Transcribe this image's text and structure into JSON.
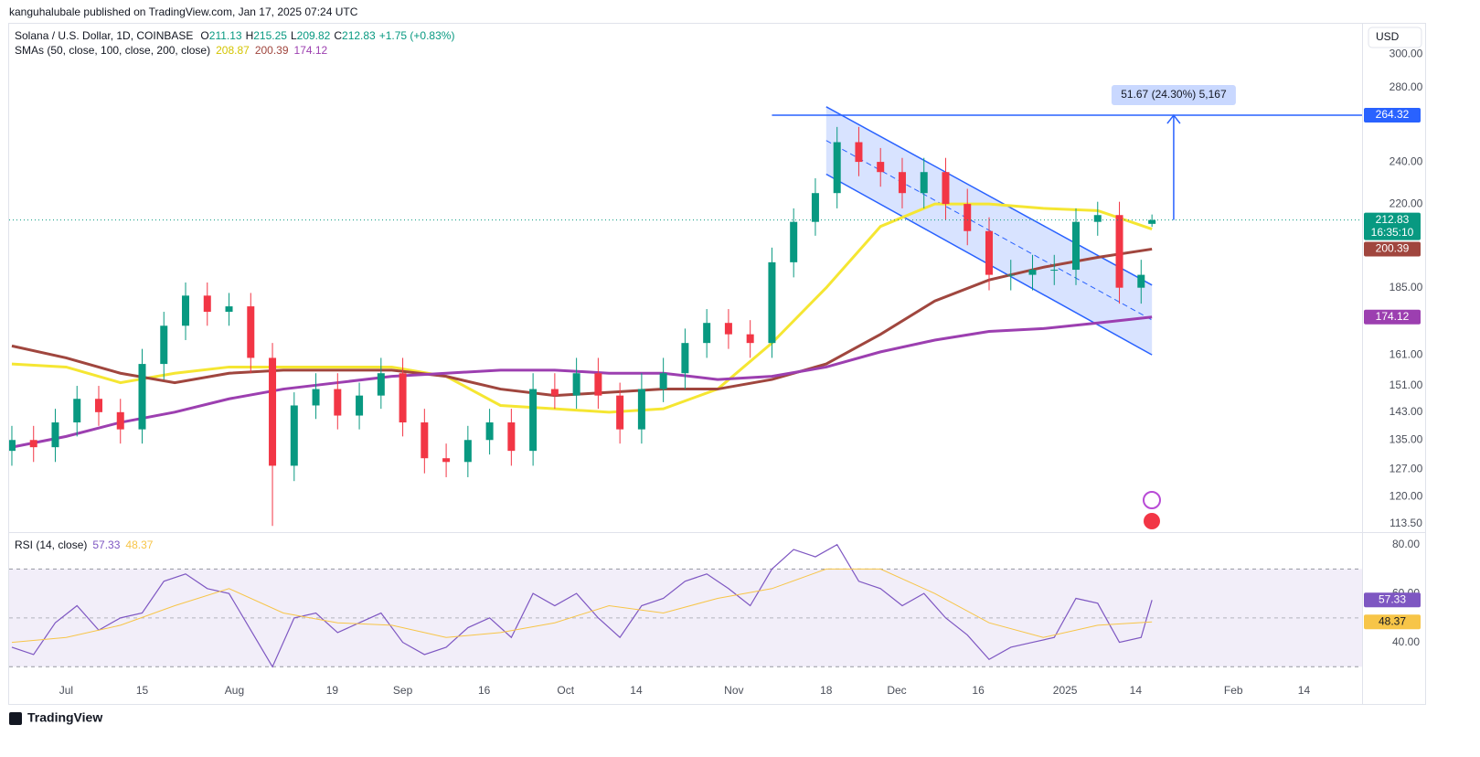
{
  "header": {
    "publisher": "kanguhalubale published on TradingView.com, Jan 17, 2025 07:24 UTC",
    "currency": "USD"
  },
  "chart_data": [
    {
      "type": "candlestick",
      "title": "Solana / U.S. Dollar, 1D, COINBASE",
      "ohlc_labels": [
        "O",
        "H",
        "L",
        "C"
      ],
      "change": "+1.75 (+0.83%)",
      "indicator": "SMAs (50, close, 100, close, 200, close)",
      "x": [
        -10,
        -6,
        -2,
        2,
        6,
        10,
        14,
        18,
        22,
        26,
        30,
        34,
        38,
        42,
        46,
        50,
        54,
        58,
        62,
        66,
        70,
        74,
        78,
        82,
        86,
        90,
        94,
        98,
        102,
        106,
        110,
        114,
        118,
        122,
        126,
        130,
        134,
        138,
        142,
        146,
        150,
        154,
        158,
        162,
        166,
        170,
        174,
        178,
        182,
        186,
        190,
        194,
        198,
        200
      ],
      "open": [
        132,
        135,
        133,
        140,
        147,
        143,
        138,
        158,
        171,
        182,
        176,
        178,
        160,
        128,
        145,
        150,
        142,
        148,
        155,
        140,
        130,
        129,
        135,
        140,
        132,
        150,
        148,
        155,
        148,
        138,
        150,
        155,
        165,
        172,
        168,
        165,
        195,
        212,
        225,
        250,
        240,
        235,
        225,
        235,
        220,
        208,
        190,
        190,
        192,
        192,
        212,
        215,
        185,
        211.13
      ],
      "high": [
        139,
        139,
        144,
        151,
        151,
        147,
        163,
        176,
        187,
        187,
        183,
        183,
        165,
        149,
        155,
        155,
        152,
        160,
        160,
        144,
        134,
        139,
        144,
        144,
        155,
        155,
        160,
        160,
        152,
        155,
        160,
        170,
        177,
        177,
        173,
        201,
        218,
        232,
        258,
        258,
        247,
        242,
        242,
        242,
        227,
        214,
        196,
        198,
        198,
        218,
        221,
        221,
        196,
        215.25
      ],
      "low": [
        128,
        129,
        129,
        136,
        139,
        134,
        134,
        153,
        166,
        171,
        171,
        155,
        113,
        124,
        141,
        138,
        138,
        144,
        136,
        126,
        125,
        125,
        131,
        128,
        128,
        144,
        144,
        144,
        134,
        134,
        146,
        150,
        160,
        163,
        160,
        160,
        189,
        206,
        218,
        233,
        228,
        218,
        218,
        213,
        202,
        184,
        184,
        184,
        186,
        186,
        206,
        179,
        179,
        209.82
      ],
      "close": [
        135,
        133,
        140,
        147,
        143,
        138,
        158,
        171,
        182,
        176,
        178,
        160,
        128,
        145,
        150,
        142,
        148,
        155,
        140,
        130,
        129,
        135,
        140,
        132,
        150,
        148,
        155,
        148,
        138,
        150,
        155,
        165,
        172,
        168,
        165,
        195,
        212,
        225,
        250,
        240,
        235,
        225,
        235,
        220,
        208,
        190,
        190,
        192,
        192,
        212,
        215,
        185,
        190,
        212.83
      ],
      "up_color": "#089981",
      "down_color": "#f23645",
      "log_scale": true,
      "ylim": [
        112,
        320
      ],
      "yticks": [
        {
          "value": 113.5,
          "label": "113.50"
        },
        {
          "value": 120,
          "label": "120.00"
        },
        {
          "value": 127,
          "label": "127.00"
        },
        {
          "value": 135,
          "label": "135.00"
        },
        {
          "value": 143,
          "label": "143.00"
        },
        {
          "value": 151,
          "label": "151.00"
        },
        {
          "value": 161,
          "label": "161.00"
        },
        {
          "value": 185,
          "label": "185.00"
        },
        {
          "value": 220,
          "label": "220.00"
        },
        {
          "value": 240,
          "label": "240.00"
        },
        {
          "value": 280,
          "label": "280.00"
        },
        {
          "value": 300,
          "label": "300.00"
        }
      ],
      "xlim": [
        -10.5,
        238.7
      ],
      "xticks": [
        {
          "value": 0,
          "label": "Jul"
        },
        {
          "value": 14,
          "label": "15"
        },
        {
          "value": 31,
          "label": "Aug"
        },
        {
          "value": 49,
          "label": "19"
        },
        {
          "value": 62,
          "label": "Sep"
        },
        {
          "value": 77,
          "label": "16"
        },
        {
          "value": 92,
          "label": "Oct"
        },
        {
          "value": 105,
          "label": "14"
        },
        {
          "value": 123,
          "label": "Nov"
        },
        {
          "value": 140,
          "label": "18"
        },
        {
          "value": 153,
          "label": "Dec"
        },
        {
          "value": 168,
          "label": "16"
        },
        {
          "value": 184,
          "label": "2025"
        },
        {
          "value": 197,
          "label": "14"
        },
        {
          "value": 215,
          "label": "Feb"
        },
        {
          "value": 228,
          "label": "14"
        }
      ],
      "series": [
        {
          "color": "#f5e632",
          "x": [
            -10,
            0,
            10,
            20,
            30,
            40,
            50,
            60,
            70,
            80,
            90,
            100,
            110,
            120,
            130,
            140,
            150,
            160,
            170,
            180,
            190,
            200
          ],
          "values": [
            158,
            157,
            152,
            155,
            157,
            157,
            157,
            157,
            154,
            145,
            144,
            143,
            144,
            150,
            165,
            185,
            210,
            220,
            220,
            218,
            217,
            208.87
          ]
        },
        {
          "color": "#a0463e",
          "x": [
            -10,
            0,
            10,
            20,
            30,
            40,
            50,
            60,
            70,
            80,
            90,
            100,
            110,
            120,
            130,
            140,
            150,
            160,
            170,
            180,
            190,
            200
          ],
          "values": [
            164,
            160,
            155,
            152,
            155,
            156,
            156,
            156,
            154,
            150,
            148,
            149,
            150,
            150,
            153,
            158,
            168,
            180,
            188,
            193,
            197,
            200.39
          ]
        },
        {
          "color": "#9c3fb0",
          "x": [
            -10,
            0,
            10,
            20,
            30,
            40,
            50,
            60,
            70,
            80,
            90,
            100,
            110,
            120,
            130,
            140,
            150,
            160,
            170,
            180,
            190,
            200
          ],
          "values": [
            133,
            136,
            140,
            143,
            147,
            150,
            152,
            154,
            155,
            156,
            156,
            155,
            155,
            153,
            154,
            157,
            162,
            166,
            169,
            170,
            172,
            174.12
          ]
        }
      ],
      "last_countdown": "16:35:10",
      "target": {
        "value": 264.32,
        "x_start": 130,
        "color": "#2962ff"
      },
      "measure": {
        "label": "51.67 (24.30%) 5,167",
        "x": 204
      },
      "channel": {
        "x": [
          140,
          200
        ],
        "upper": [
          269,
          186
        ],
        "lower": [
          234,
          161
        ]
      }
    },
    {
      "type": "line",
      "title": "RSI (14, close)",
      "ylim": [
        26,
        84
      ],
      "yticks": [
        {
          "value": 40,
          "label": "40.00"
        },
        {
          "value": 60,
          "label": "60.00"
        },
        {
          "value": 80,
          "label": "80.00"
        }
      ],
      "band": [
        30,
        70
      ],
      "midline": 50,
      "series": [
        {
          "color": "#7e57c2",
          "values": [
            38,
            35,
            48,
            55,
            45,
            50,
            52,
            65,
            68,
            62,
            60,
            45,
            30,
            50,
            52,
            44,
            48,
            52,
            40,
            35,
            38,
            46,
            50,
            42,
            60,
            55,
            60,
            50,
            42,
            55,
            58,
            65,
            68,
            62,
            55,
            70,
            78,
            75,
            80,
            65,
            62,
            55,
            60,
            50,
            43,
            33,
            38,
            40,
            42,
            58,
            56,
            40,
            42,
            57.33
          ]
        },
        {
          "color": "#f7c548",
          "x": [
            -10,
            0,
            10,
            20,
            30,
            40,
            50,
            60,
            70,
            80,
            90,
            100,
            110,
            120,
            130,
            140,
            150,
            160,
            170,
            180,
            190,
            200
          ],
          "values": [
            40,
            42,
            47,
            55,
            62,
            52,
            48,
            47,
            42,
            44,
            48,
            55,
            52,
            58,
            62,
            70,
            70,
            60,
            48,
            42,
            47,
            48.37
          ]
        }
      ]
    }
  ],
  "footer": {
    "brand": "TradingView"
  }
}
